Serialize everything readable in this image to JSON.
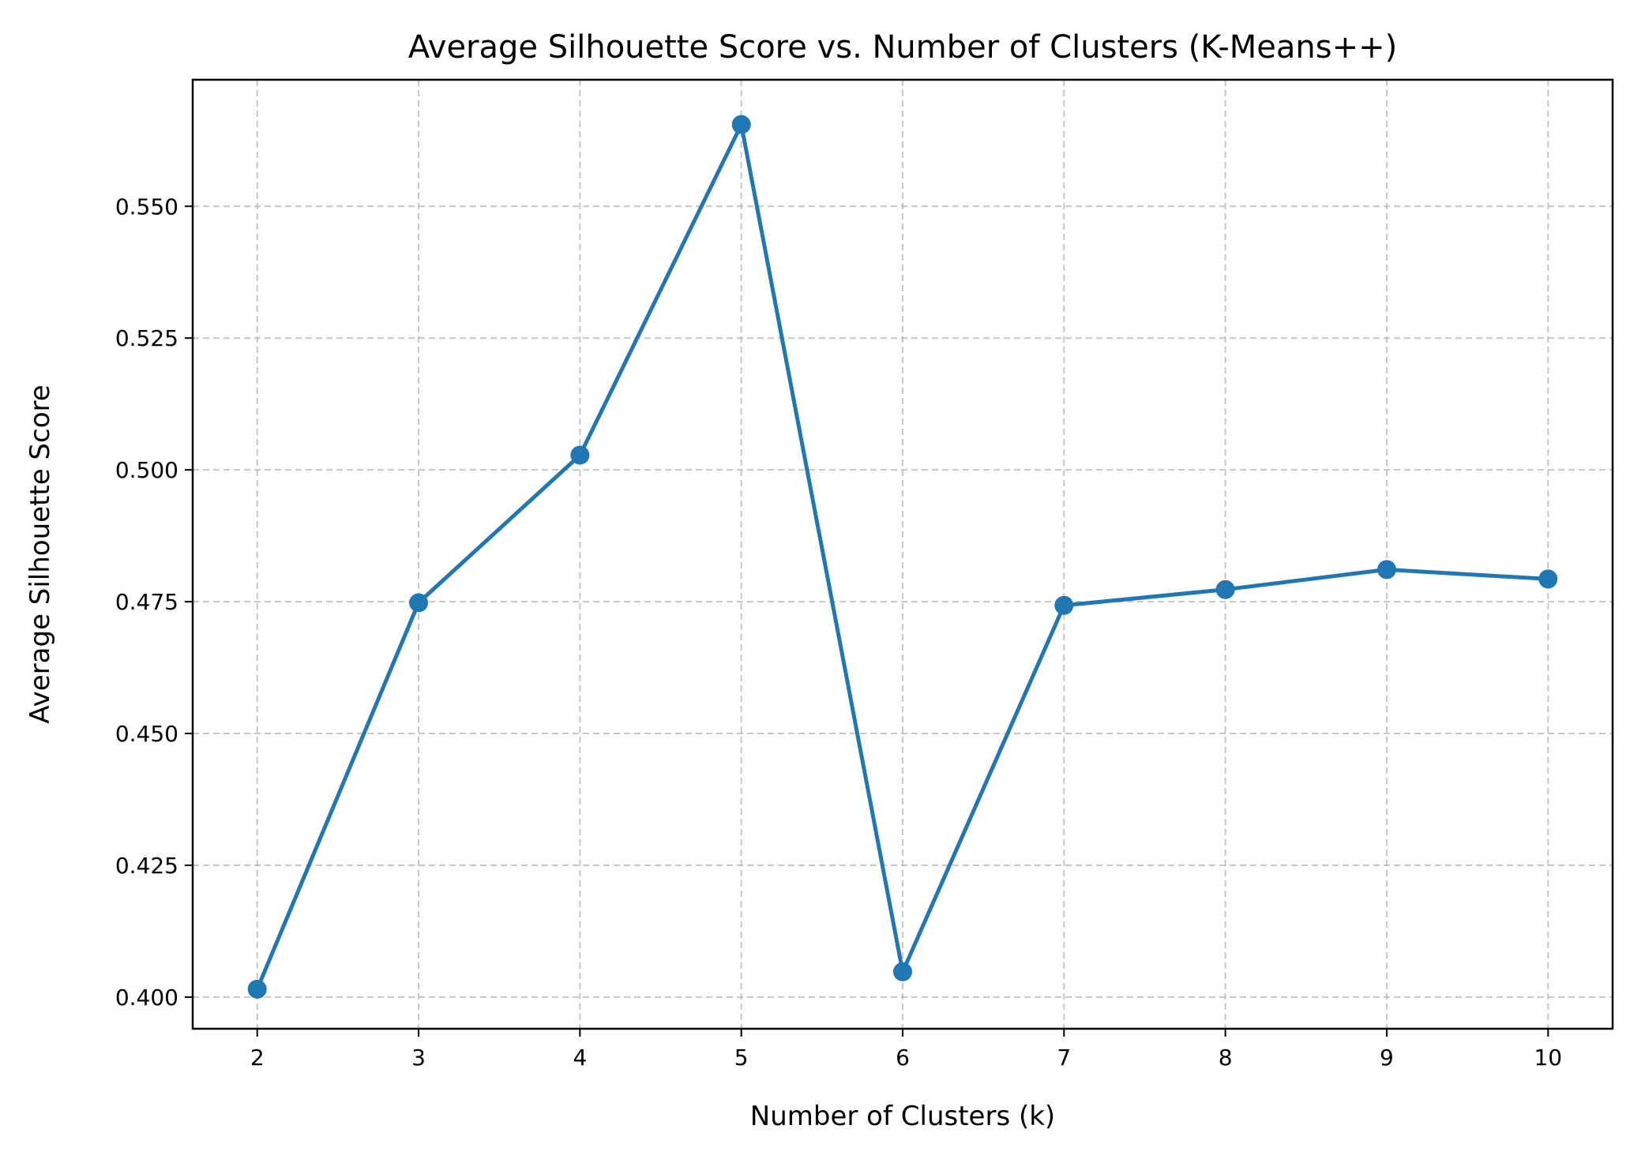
{
  "chart_data": {
    "type": "line",
    "title": "Average Silhouette Score vs. Number of Clusters (K-Means++)",
    "xlabel": "Number of Clusters (k)",
    "ylabel": "Average Silhouette Score",
    "xlim": [
      1.6,
      10.4
    ],
    "ylim": [
      0.394,
      0.574
    ],
    "x_ticks": [
      2,
      3,
      4,
      5,
      6,
      7,
      8,
      9,
      10
    ],
    "x_tick_labels": [
      "2",
      "3",
      "4",
      "5",
      "6",
      "7",
      "8",
      "9",
      "10"
    ],
    "y_ticks": [
      0.4,
      0.425,
      0.45,
      0.475,
      0.5,
      0.525,
      0.55
    ],
    "y_tick_labels": [
      "0.400",
      "0.425",
      "0.450",
      "0.475",
      "0.500",
      "0.525",
      "0.550"
    ],
    "grid": true,
    "series": [
      {
        "color": "#1f77b4",
        "marker": "circle",
        "x": [
          2,
          3,
          4,
          5,
          6,
          7,
          8,
          9,
          10
        ],
        "y": [
          0.4015,
          0.4748,
          0.5028,
          0.5655,
          0.4048,
          0.4743,
          0.4773,
          0.4811,
          0.4793
        ]
      }
    ]
  }
}
